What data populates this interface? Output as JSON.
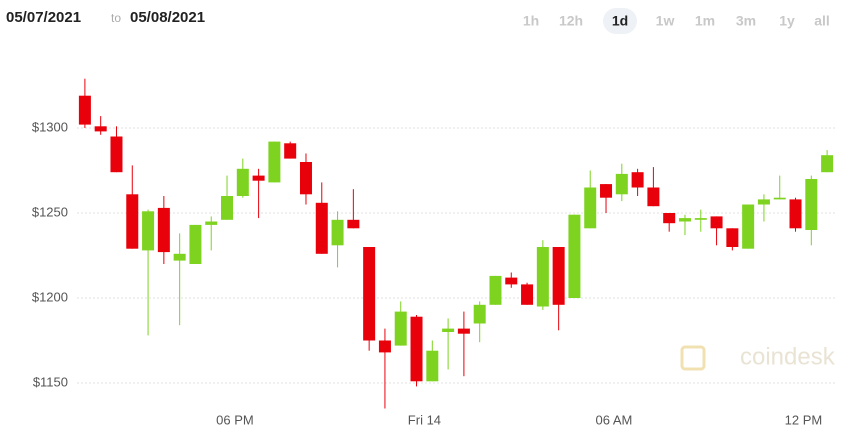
{
  "header": {
    "from": "05/07/2021",
    "to_word": "to",
    "to": "05/08/2021",
    "ranges": [
      "1h",
      "12h",
      "1d",
      "1w",
      "1m",
      "3m",
      "1y",
      "all"
    ],
    "selected_range": "1d"
  },
  "watermark": "coindesk",
  "chart_data": {
    "type": "candlestick",
    "categories": [
      null,
      null,
      null,
      null,
      null,
      null,
      null,
      null,
      null,
      "06 PM",
      null,
      null,
      null,
      null,
      null,
      null,
      null,
      null,
      null,
      null,
      null,
      "Fri 14",
      null,
      null,
      null,
      null,
      null,
      null,
      null,
      null,
      null,
      null,
      null,
      "06 AM",
      null,
      null,
      null,
      null,
      null,
      null,
      null,
      null,
      null,
      null,
      null,
      "12 PM",
      null,
      null
    ],
    "open": [
      1319,
      1301,
      1295,
      1261,
      1228,
      1253,
      1222,
      1220,
      1243,
      1246,
      1260,
      1272,
      1268,
      1291,
      1280,
      1256,
      1231,
      1246,
      1230,
      1175,
      1172,
      1189,
      1151,
      1180,
      1182,
      1185,
      1196,
      1212,
      1208,
      1195,
      1230,
      1200,
      1241,
      1267,
      1261,
      1274,
      1265,
      1250,
      1245,
      1246,
      1248,
      1241,
      1229,
      1255,
      1258,
      1258,
      1240,
      1274
    ],
    "high": [
      1329,
      1307,
      1301,
      1278,
      1252,
      1260,
      1238,
      1243,
      1248,
      1272,
      1282,
      1276,
      1292,
      1292,
      1285,
      1268,
      1251,
      1264,
      1230,
      1182,
      1198,
      1190,
      1175,
      1188,
      1192,
      1198,
      1213,
      1215,
      1209,
      1234,
      1230,
      1249,
      1275,
      1267,
      1279,
      1276,
      1277,
      1250,
      1249,
      1252,
      1248,
      1241,
      1255,
      1261,
      1272,
      1259,
      1272,
      1287
    ],
    "low": [
      1300,
      1296,
      1274,
      1229,
      1178,
      1220,
      1184,
      1220,
      1228,
      1246,
      1259,
      1247,
      1268,
      1282,
      1255,
      1226,
      1218,
      1241,
      1169,
      1135,
      1172,
      1148,
      1151,
      1158,
      1154,
      1174,
      1196,
      1206,
      1196,
      1193,
      1181,
      1200,
      1241,
      1250,
      1257,
      1260,
      1254,
      1239,
      1237,
      1239,
      1231,
      1228,
      1229,
      1245,
      1258,
      1239,
      1231,
      1274
    ],
    "close": [
      1302,
      1298,
      1274,
      1229,
      1251,
      1227,
      1226,
      1243,
      1245,
      1260,
      1276,
      1269,
      1292,
      1282,
      1261,
      1226,
      1246,
      1241,
      1175,
      1168,
      1192,
      1151,
      1169,
      1182,
      1179,
      1196,
      1213,
      1208,
      1196,
      1230,
      1196,
      1249,
      1265,
      1259,
      1273,
      1265,
      1254,
      1244,
      1247,
      1247,
      1241,
      1230,
      1255,
      1258,
      1259,
      1241,
      1270,
      1284
    ],
    "up_color": "#7ed321",
    "down_color": "#e8000b",
    "ylim": [
      1130,
      1340
    ],
    "yticks": [
      {
        "value": 1150,
        "label": "$1150"
      },
      {
        "value": 1200,
        "label": "$1200"
      },
      {
        "value": 1250,
        "label": "$1250"
      },
      {
        "value": 1300,
        "label": "$1300"
      }
    ],
    "grid": true
  }
}
